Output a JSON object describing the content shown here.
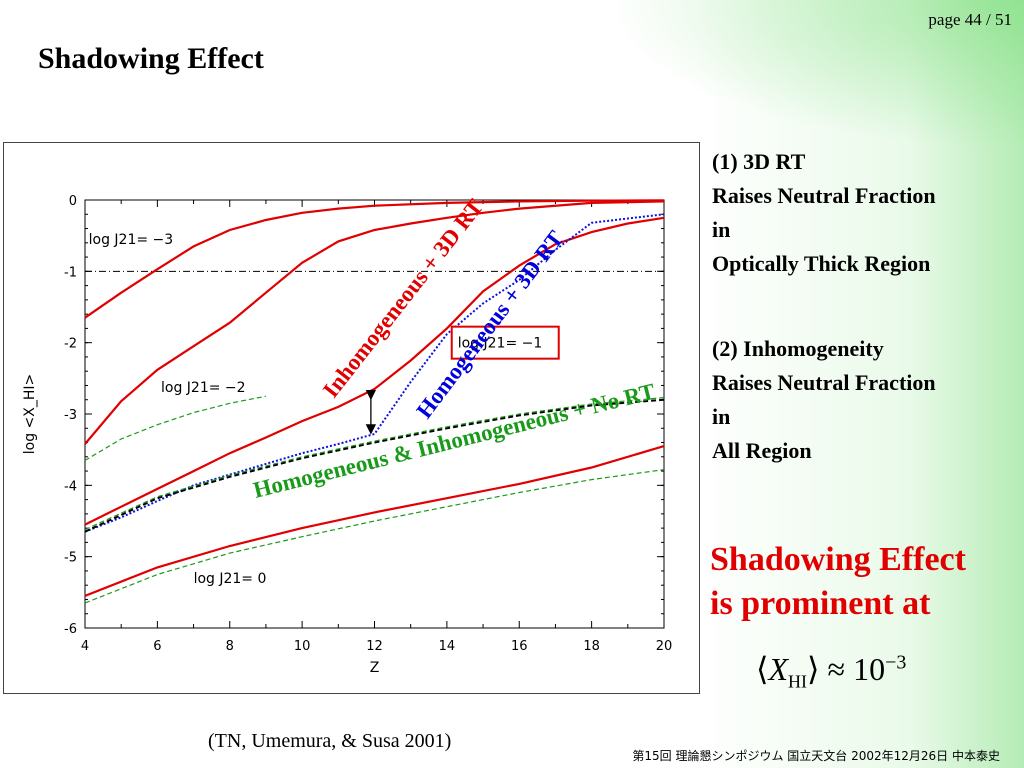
{
  "page_number": "page 44 / 51",
  "title": "Shadowing Effect",
  "notes": {
    "note1": [
      "(1) 3D RT",
      "Raises Neutral Fraction",
      "in",
      "Optically Thick Region"
    ],
    "note2": [
      "(2) Inhomogeneity",
      "Raises Neutral Fraction",
      "in",
      "All Region"
    ]
  },
  "emphasis": [
    "Shadowing Effect",
    "is prominent at"
  ],
  "formula": {
    "var": "X",
    "sub": "HI",
    "approx": "≈ 10",
    "exp": "−3"
  },
  "citation": "(TN, Umemura, & Susa 2001)",
  "footer": "第15回 理論懇シンポジウム 国立天文台 2002年12月26日 中本泰史",
  "chart_data": {
    "type": "line",
    "xlabel": "Z",
    "ylabel": "log <X_HI>",
    "xlim": [
      4,
      20
    ],
    "ylim": [
      -6,
      0
    ],
    "xticks": [
      4,
      6,
      8,
      10,
      12,
      14,
      16,
      18,
      20
    ],
    "yticks": [
      0,
      -1,
      -2,
      -3,
      -4,
      -5,
      -6
    ],
    "reference_line": {
      "y": -1,
      "style": "dash-dot"
    },
    "region_labels": [
      {
        "text": "log J21= −3",
        "x": 4.1,
        "y": -0.55
      },
      {
        "text": "log J21= −2",
        "x": 6.1,
        "y": -2.62
      },
      {
        "text": "log J21= 0",
        "x": 7.0,
        "y": -5.3
      }
    ],
    "boxed_label": {
      "text": "log J21= −1",
      "x": 14.3,
      "y": -2.0
    },
    "annotations": [
      {
        "text": "Inhomogeneous + 3D RT",
        "color": "#e00000"
      },
      {
        "text": "Homogeneous + 3D RT",
        "color": "#0000dd"
      },
      {
        "text": "Homogeneous & Inhomogeneous + No RT",
        "color": "#1a9a1a"
      }
    ],
    "arrow": {
      "x": 11.9,
      "y1": -2.65,
      "y2": -3.3
    },
    "series": [
      {
        "style": "red",
        "x": [
          4,
          5,
          6,
          7,
          8,
          9,
          10,
          11,
          12,
          14,
          16,
          18,
          20
        ],
        "y": [
          -1.65,
          -1.3,
          -0.97,
          -0.65,
          -0.42,
          -0.28,
          -0.18,
          -0.12,
          -0.08,
          -0.04,
          -0.02,
          -0.01,
          -0.005
        ]
      },
      {
        "style": "red",
        "x": [
          4,
          5,
          6,
          7,
          8,
          9,
          10,
          11,
          12,
          13,
          14,
          15,
          16,
          18,
          20
        ],
        "y": [
          -3.42,
          -2.82,
          -2.38,
          -2.05,
          -1.72,
          -1.3,
          -0.88,
          -0.58,
          -0.42,
          -0.33,
          -0.25,
          -0.18,
          -0.12,
          -0.04,
          -0.02
        ]
      },
      {
        "style": "green-dash",
        "x": [
          4,
          5,
          6,
          7,
          8,
          9
        ],
        "y": [
          -3.65,
          -3.35,
          -3.15,
          -2.98,
          -2.85,
          -2.75
        ]
      },
      {
        "style": "red",
        "x": [
          4,
          5,
          6,
          7,
          8,
          9,
          10,
          11,
          12,
          13,
          14,
          15,
          16,
          17,
          18,
          19,
          20
        ],
        "y": [
          -4.55,
          -4.3,
          -4.05,
          -3.8,
          -3.55,
          -3.33,
          -3.1,
          -2.9,
          -2.65,
          -2.25,
          -1.8,
          -1.28,
          -0.92,
          -0.62,
          -0.45,
          -0.33,
          -0.25
        ]
      },
      {
        "style": "blue-dot",
        "x": [
          4,
          5,
          6,
          7,
          8,
          9,
          10,
          11,
          12,
          13,
          14,
          15,
          16,
          17,
          18,
          19,
          20
        ],
        "y": [
          -4.65,
          -4.45,
          -4.22,
          -4.0,
          -3.85,
          -3.7,
          -3.55,
          -3.42,
          -3.28,
          -2.55,
          -1.88,
          -1.45,
          -1.12,
          -0.7,
          -0.32,
          -0.26,
          -0.2
        ]
      },
      {
        "style": "black-dash",
        "x": [
          4,
          6,
          8,
          10,
          12,
          14,
          16,
          18,
          20
        ],
        "y": [
          -4.65,
          -4.18,
          -3.88,
          -3.62,
          -3.4,
          -3.2,
          -3.02,
          -2.88,
          -2.8
        ]
      },
      {
        "style": "green-dash",
        "x": [
          4,
          6,
          8,
          10,
          12,
          14,
          16,
          18,
          20
        ],
        "y": [
          -4.62,
          -4.16,
          -3.86,
          -3.6,
          -3.38,
          -3.18,
          -3.0,
          -2.86,
          -2.77
        ]
      },
      {
        "style": "red",
        "x": [
          4,
          6,
          8,
          10,
          12,
          14,
          16,
          18,
          20
        ],
        "y": [
          -5.55,
          -5.15,
          -4.85,
          -4.6,
          -4.38,
          -4.18,
          -3.98,
          -3.75,
          -3.45
        ]
      },
      {
        "style": "green-dash",
        "x": [
          4,
          6,
          8,
          10,
          12,
          14,
          16,
          18,
          20
        ],
        "y": [
          -5.65,
          -5.25,
          -4.95,
          -4.72,
          -4.5,
          -4.3,
          -4.1,
          -3.92,
          -3.78
        ]
      }
    ]
  }
}
